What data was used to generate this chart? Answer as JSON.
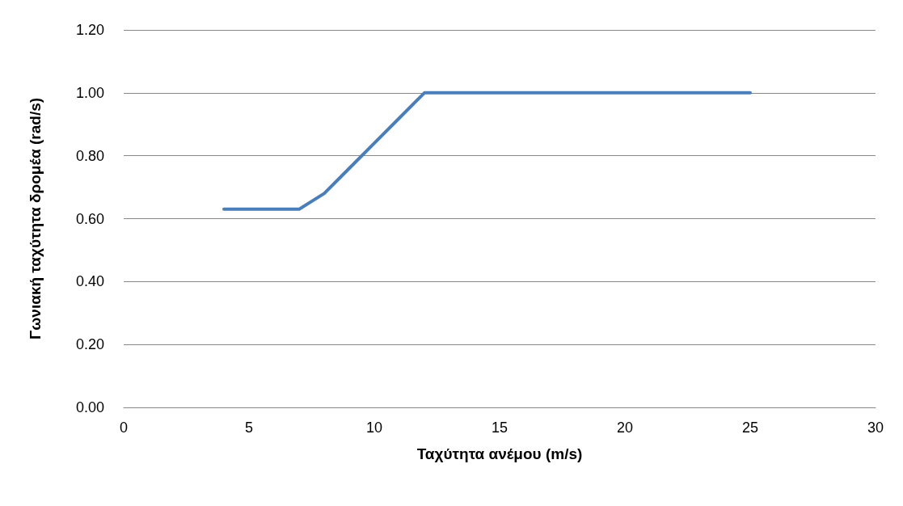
{
  "chart_data": {
    "type": "line",
    "xlabel": "Ταχύτητα ανέμου (m/s)",
    "ylabel": "Γωνιακή ταχύτητα δρομέα (rad/s)",
    "x": [
      4,
      5,
      6,
      7,
      8,
      9,
      10,
      11,
      12,
      25
    ],
    "series": [
      {
        "color": "#4a7ebb",
        "values": [
          0.63,
          0.63,
          0.63,
          0.63,
          0.68,
          0.76,
          0.84,
          0.92,
          1.0,
          1.0
        ]
      }
    ],
    "xlim": [
      0,
      30
    ],
    "xticks": [
      0,
      5,
      10,
      15,
      20,
      25,
      30
    ],
    "ylim": [
      0,
      1.2
    ],
    "yticks": [
      {
        "value": 0,
        "label": "0.00"
      },
      {
        "value": 0.2,
        "label": "0.20"
      },
      {
        "value": 0.4,
        "label": "0.40"
      },
      {
        "value": 0.6,
        "label": "0.60"
      },
      {
        "value": 0.8,
        "label": "0.80"
      },
      {
        "value": 1.0,
        "label": "1.00"
      },
      {
        "value": 1.2,
        "label": "1.20"
      }
    ],
    "grid": "y",
    "marker": "none",
    "line_style": "solid"
  }
}
